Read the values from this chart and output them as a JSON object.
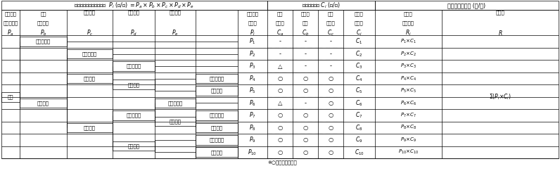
{
  "bg_color": "#ffffff",
  "line_color": "#000000",
  "fs": 5.0,
  "fs_hdr": 5.0,
  "fs_math": 5.5,
  "title_main": "各事象の発生頻度期待値  $P_i$ (回/年) $= P_a \\times P_b \\times P_c \\times P_d \\times P_e$",
  "title_loss": "発生時の損失 $C_i$ (円/回)",
  "title_risk": "落石災害リスク (円/年)",
  "hdr_col1_l1": "落石発生",
  "hdr_col1_l2": "頻度期待値",
  "hdr_col1_l3": "$P_a$",
  "hdr_col2_l1": "路路",
  "hdr_col2_l2": "到達確率",
  "hdr_col2_l3": "$P_b$",
  "hdr_col3_l1": "直撃確率",
  "hdr_col3_l2": "",
  "hdr_col3_l3": "$P_c$",
  "hdr_col4_l1": "衝突確率",
  "hdr_col4_l2": "",
  "hdr_col4_l3": "$P_d$",
  "hdr_col5_l1": "脱線確率",
  "hdr_col5_l2": "",
  "hdr_col5_l3": "$P_e$",
  "hdr_col6_l1": "発生頻度",
  "hdr_col6_l2": "期待値",
  "hdr_col6_l3": "$P_i$",
  "hdr_col7_l1": "応急",
  "hdr_col7_l2": "復旧費",
  "hdr_col7_l3": "$C_a$",
  "hdr_col8_l1": "社会的",
  "hdr_col8_l2": "影響",
  "hdr_col8_l3": "$C_b$",
  "hdr_col9_l1": "営業",
  "hdr_col9_l2": "損失費",
  "hdr_col9_l3": "$C_c$",
  "hdr_col10_l1": "各事象",
  "hdr_col10_l2": "の損失",
  "hdr_col10_l3": "$C_i$",
  "hdr_col11_l1": "各事象",
  "hdr_col11_l2": "のリスク",
  "hdr_col11_l3": "$R_i$",
  "hdr_col12_l1": "リスク",
  "hdr_col12_l2": "",
  "hdr_col12_l3": "$R$",
  "p_labels": [
    "$P_1$",
    "$P_2$",
    "$P_3$",
    "$P_4$",
    "$P_5$",
    "$P_6$",
    "$P_7$",
    "$P_8$",
    "$P_9$",
    "$P_{10}$"
  ],
  "c_labels": [
    "$C_1$",
    "$C_2$",
    "$C_3$",
    "$C_4$",
    "$C_5$",
    "$C_6$",
    "$C_7$",
    "$C_8$",
    "$C_9$",
    "$C_{10}$"
  ],
  "r_labels": [
    "$P_1{\\times}C_1$",
    "$P_2{\\times}C_2$",
    "$P_3{\\times}C_3$",
    "$P_4{\\times}C_4$",
    "$P_5{\\times}C_5$",
    "$P_6{\\times}C_6$",
    "$P_7{\\times}C_7$",
    "$P_8{\\times}C_8$",
    "$P_9{\\times}C_9$",
    "$P_{10}{\\times}C_{10}$"
  ],
  "sum_label": "$\\Sigma (P_i {\\times} C_i)$",
  "note": "※○は該当する項目",
  "symbols": [
    [
      "-",
      "-",
      "-"
    ],
    [
      "-",
      "-",
      "-"
    ],
    [
      "△",
      "-",
      "-"
    ],
    [
      "○",
      "○",
      "○"
    ],
    [
      "○",
      "○",
      "○"
    ],
    [
      "△",
      "-",
      "○"
    ],
    [
      "○",
      "○",
      "○"
    ],
    [
      "○",
      "○",
      "○"
    ],
    [
      "○",
      "○",
      "○"
    ],
    [
      "○",
      "○",
      "○"
    ]
  ],
  "tree_labels": {
    "root": "岩塊",
    "no_fall": "落石しない",
    "fall": "落石する",
    "no_reach": "到達しない",
    "pass": "通過する",
    "stop": "停止する",
    "no_hit_pass": "直撃しない",
    "hit_pass": "直撃する",
    "no_hit_stop": "直撃しない",
    "hit_stop": "直撃する",
    "no_collide": "衝突しない",
    "collide": "衝突する",
    "no_derail1": "脱線しない",
    "derail1": "脱線する",
    "no_derail2": "脱線しない",
    "derail2": "脱線する",
    "no_derail3": "脱線しない",
    "derail3": "脱線する",
    "no_derail4": "脱線しない",
    "derail4": "脱線する"
  }
}
